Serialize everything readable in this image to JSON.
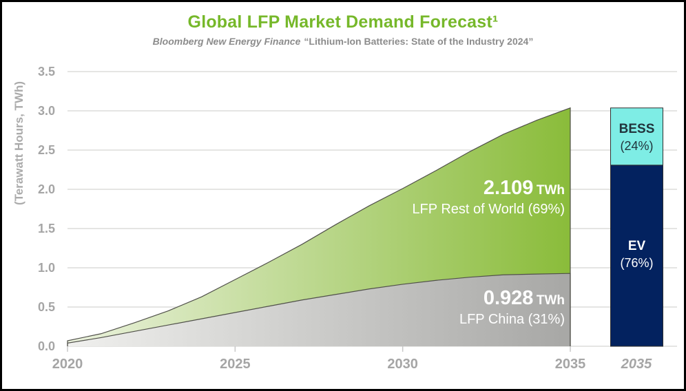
{
  "header": {
    "title": "Global LFP Market Demand Forecast¹",
    "subtitle_source": "Bloomberg New Energy Finance",
    "subtitle_report": "“Lithium-Ion Batteries: State of the Industry 2024”"
  },
  "chart_data": {
    "type": "area",
    "title": "Global LFP Market Demand Forecast",
    "subtitle": "Bloomberg New Energy Finance “Lithium-Ion Batteries: State of the Industry 2024”",
    "ylabel": "(Terawatt Hours, TWh)",
    "ylim": [
      0,
      3.5
    ],
    "ytick_step": 0.5,
    "grid": true,
    "x": [
      2020,
      2021,
      2022,
      2023,
      2024,
      2025,
      2026,
      2027,
      2028,
      2029,
      2030,
      2031,
      2032,
      2033,
      2034,
      2035
    ],
    "xticks": [
      2020,
      2025,
      2030,
      2035
    ],
    "series": [
      {
        "name": "LFP China",
        "stack_order": "bottom",
        "values": [
          0.04,
          0.11,
          0.19,
          0.27,
          0.35,
          0.43,
          0.51,
          0.59,
          0.66,
          0.73,
          0.79,
          0.84,
          0.88,
          0.91,
          0.92,
          0.928
        ],
        "value_2035_twh": 0.928,
        "share_2035": "31%",
        "gradient_start": "#F0F0EE",
        "gradient_end": "#A7A7A5"
      },
      {
        "name": "LFP Rest of World",
        "stack_order": "top",
        "values": [
          0.03,
          0.05,
          0.11,
          0.18,
          0.28,
          0.42,
          0.56,
          0.71,
          0.89,
          1.06,
          1.22,
          1.4,
          1.6,
          1.79,
          1.96,
          2.109
        ],
        "value_2035_twh": 2.109,
        "share_2035": "69%",
        "gradient_start": "#EBF2DE",
        "gradient_end": "#8ABC3A"
      }
    ],
    "annotations": [
      {
        "value": "2.109",
        "unit": "TWh",
        "label": "LFP Rest of World (69%)"
      },
      {
        "value": "0.928",
        "unit": "TWh",
        "label": "LFP China (31%)"
      }
    ],
    "bar_2035": {
      "xlabel": "2035",
      "total_twh": 3.037,
      "segments": [
        {
          "name": "BESS",
          "pct_label": "(24%)",
          "fraction": 0.24,
          "color": "#7EEDE5",
          "text_color": "#21343C"
        },
        {
          "name": "EV",
          "pct_label": "(76%)",
          "fraction": 0.76,
          "color": "#03225F",
          "text_color": "#FFFFFF"
        }
      ]
    }
  },
  "colors": {
    "title_green": "#76B82A",
    "subtitle_gray": "#8C8C8C",
    "tick_gray": "#A5A5A5",
    "gridline": "#E5E5E3",
    "area_outline": "#50504A",
    "bar_border": "#2E2E2E"
  }
}
